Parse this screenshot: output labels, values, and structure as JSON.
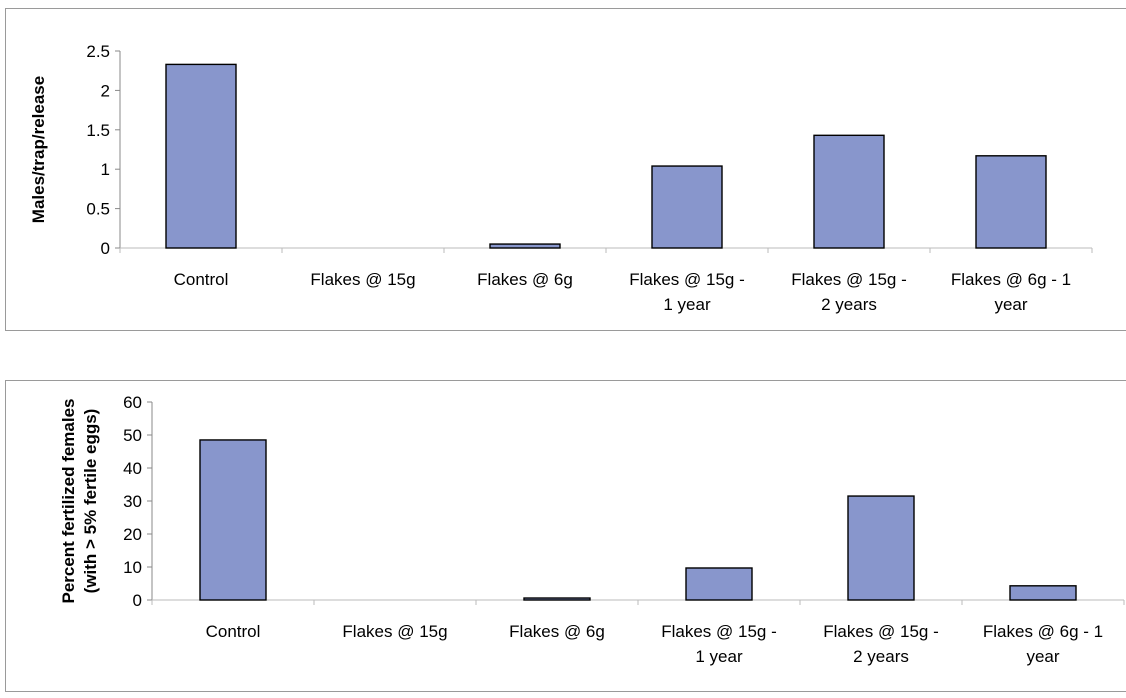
{
  "chart_data": [
    {
      "type": "bar",
      "title": "",
      "xlabel": "",
      "ylabel": "Males/trap/release",
      "ylim": [
        0,
        2.5
      ],
      "yticks": [
        "0",
        "0.5",
        "1",
        "1.5",
        "2",
        "2.5"
      ],
      "categories": [
        [
          "Control"
        ],
        [
          "Flakes @ 15g"
        ],
        [
          "Flakes @ 6g"
        ],
        [
          "Flakes @ 15g -",
          "1 year"
        ],
        [
          "Flakes @ 15g -",
          "2 years"
        ],
        [
          "Flakes @ 6g - 1",
          "year"
        ]
      ],
      "values": [
        2.33,
        0,
        0.05,
        1.04,
        1.43,
        1.17
      ],
      "bar_color": "#8896cc",
      "grid": false,
      "legend": "none"
    },
    {
      "type": "bar",
      "title": "",
      "xlabel": "",
      "ylabel": [
        "Percent fertilized females",
        "(with > 5% fertile eggs)"
      ],
      "ylim": [
        0,
        60
      ],
      "yticks": [
        "0",
        "10",
        "20",
        "30",
        "40",
        "50",
        "60"
      ],
      "categories": [
        [
          "Control"
        ],
        [
          "Flakes @ 15g"
        ],
        [
          "Flakes @ 6g"
        ],
        [
          "Flakes @ 15g -",
          "1 year"
        ],
        [
          "Flakes @ 15g -",
          "2 years"
        ],
        [
          "Flakes @ 6g - 1",
          "year"
        ]
      ],
      "values": [
        48.5,
        0,
        0.6,
        9.7,
        31.5,
        4.3
      ],
      "bar_color": "#8896cc",
      "grid": false,
      "legend": "none"
    }
  ]
}
